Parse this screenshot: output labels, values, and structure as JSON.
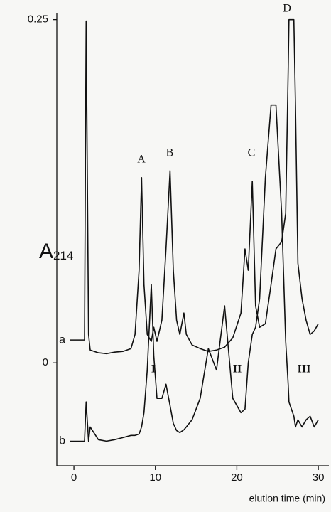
{
  "chart_data": {
    "type": "line",
    "x_label": "elution time (min)",
    "y_label": {
      "text": "A",
      "subscript": "214"
    },
    "xlim": [
      -2.1,
      31.3
    ],
    "ylim": [
      -0.075,
      0.255
    ],
    "xticks": [
      0,
      10,
      20,
      30
    ],
    "yticks": [
      0,
      0.25
    ],
    "color": "#111111",
    "x": [
      1.3,
      1.5,
      1.8,
      2.0,
      3,
      4,
      5,
      6,
      7,
      7.5,
      8.0,
      8.3,
      8.6,
      9,
      9.5,
      9.8,
      10.2,
      10.8,
      11.3,
      11.8,
      12.2,
      12.6,
      13.0,
      13.5,
      13.8,
      14.5,
      15.5,
      16.5,
      17.5,
      18.5,
      19.5,
      20.5,
      21.0,
      21.4,
      21.9,
      22.3,
      22.8,
      23.5,
      24.2,
      24.8,
      25.5,
      26.0,
      26.3,
      26.4,
      27.0,
      27.2,
      27.5,
      28,
      28.5,
      29,
      29.5,
      30
    ],
    "series": [
      {
        "name": "a",
        "values": [
          0.0166,
          0.249,
          0.0207,
          0.0093,
          0.0073,
          0.0067,
          0.0078,
          0.0083,
          0.0104,
          0.0207,
          0.0674,
          0.1349,
          0.0571,
          0.0207,
          0.0156,
          0.0259,
          0.0156,
          0.0311,
          0.083,
          0.14,
          0.0674,
          0.0311,
          0.0207,
          0.0363,
          0.0207,
          0.013,
          0.0104,
          0.0083,
          0.0093,
          0.0114,
          0.0182,
          0.0363,
          0.083,
          0.0674,
          0.1323,
          0.0415,
          0.0259,
          0.0285,
          0.0571,
          0.083,
          0.0882,
          0.1089,
          0.2127,
          0.25,
          0.25,
          0.1867,
          0.0726,
          0.0467,
          0.0311,
          0.0207,
          0.0233,
          0.0285
        ]
      },
      {
        "name": "b",
        "values": [
          -0.0571,
          -0.0285,
          -0.0571,
          -0.0467,
          -0.056,
          -0.0571,
          -0.056,
          -0.0545,
          -0.0529,
          -0.0529,
          -0.0519,
          -0.0467,
          -0.0363,
          -0.0052,
          0.0571,
          0.0052,
          -0.0259,
          -0.0259,
          -0.0156,
          -0.0311,
          -0.0441,
          -0.0493,
          -0.0508,
          -0.0488,
          -0.0467,
          -0.0415,
          -0.0259,
          0.0104,
          -0.0052,
          0.0415,
          -0.0259,
          -0.0363,
          -0.0337,
          0,
          0.0207,
          0.0259,
          0.0467,
          0.1349,
          0.1878,
          0.1878,
          0.1089,
          0.0156,
          -0.0156,
          -0.0285,
          -0.0389,
          -0.0467,
          -0.0415,
          -0.0467,
          -0.0415,
          -0.0389,
          -0.0467,
          -0.0415
        ]
      }
    ],
    "annotations": [
      "A",
      "B",
      "C",
      "D",
      "I",
      "II",
      "III"
    ]
  }
}
